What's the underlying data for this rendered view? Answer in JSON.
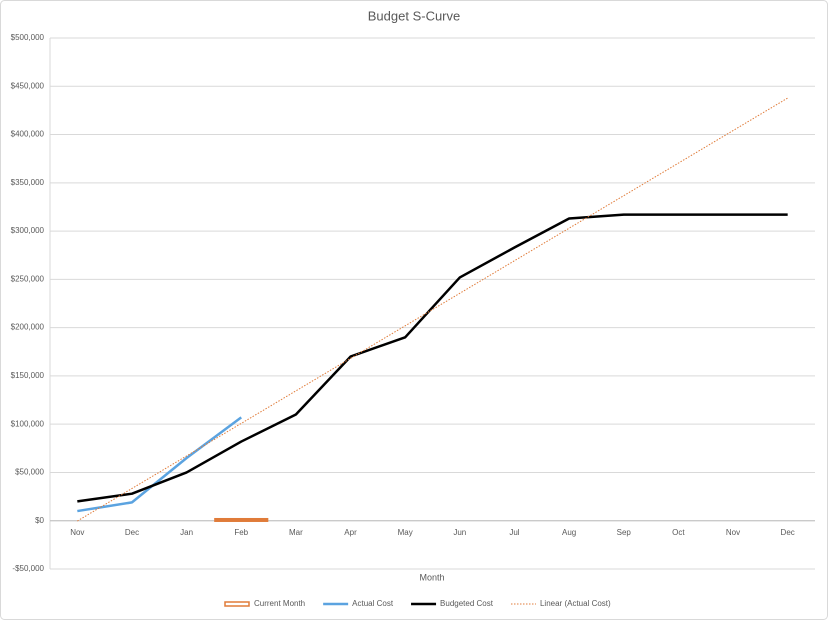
{
  "chart_data": {
    "type": "line",
    "title": "Budget  S-Curve",
    "x_label": "Month",
    "categories": [
      "Nov",
      "Dec",
      "Jan",
      "Feb",
      "Mar",
      "Apr",
      "May",
      "Jun",
      "Jul",
      "Aug",
      "Sep",
      "Oct",
      "Nov",
      "Dec"
    ],
    "series": [
      {
        "name": "Current Month",
        "type": "bar",
        "color": "#e07b39",
        "values": [
          null,
          null,
          null,
          0,
          null,
          null,
          null,
          null,
          null,
          null,
          null,
          null,
          null,
          null
        ]
      },
      {
        "name": "Actual Cost",
        "type": "line",
        "color": "#5ba3e0",
        "values": [
          10000,
          19000,
          65000,
          107000,
          null,
          null,
          null,
          null,
          null,
          null,
          null,
          null,
          null,
          null
        ]
      },
      {
        "name": "Budgeted Cost",
        "type": "line",
        "color": "#000000",
        "values": [
          20000,
          28000,
          50000,
          82000,
          110000,
          170000,
          190000,
          252000,
          283000,
          313000,
          317000,
          317000,
          317000,
          317000
        ]
      },
      {
        "name": "Linear (Actual Cost)",
        "type": "trend",
        "color": "#e07b39",
        "values": [
          -300,
          33400,
          67100,
          100800,
          134500,
          168200,
          201900,
          235600,
          269300,
          303000,
          336700,
          370400,
          404100,
          437800
        ]
      }
    ],
    "ylim": [
      -50000,
      500000
    ],
    "yticks": [
      {
        "value": -50000,
        "label": "-$50,000"
      },
      {
        "value": 0,
        "label": "$0"
      },
      {
        "value": 50000,
        "label": "$50,000"
      },
      {
        "value": 100000,
        "label": "$100,000"
      },
      {
        "value": 150000,
        "label": "$150,000"
      },
      {
        "value": 200000,
        "label": "$200,000"
      },
      {
        "value": 250000,
        "label": "$250,000"
      },
      {
        "value": 300000,
        "label": "$300,000"
      },
      {
        "value": 350000,
        "label": "$350,000"
      },
      {
        "value": 400000,
        "label": "$400,000"
      },
      {
        "value": 450000,
        "label": "$450,000"
      },
      {
        "value": 500000,
        "label": "$500,000"
      }
    ],
    "grid": true,
    "legend": "bottom"
  }
}
